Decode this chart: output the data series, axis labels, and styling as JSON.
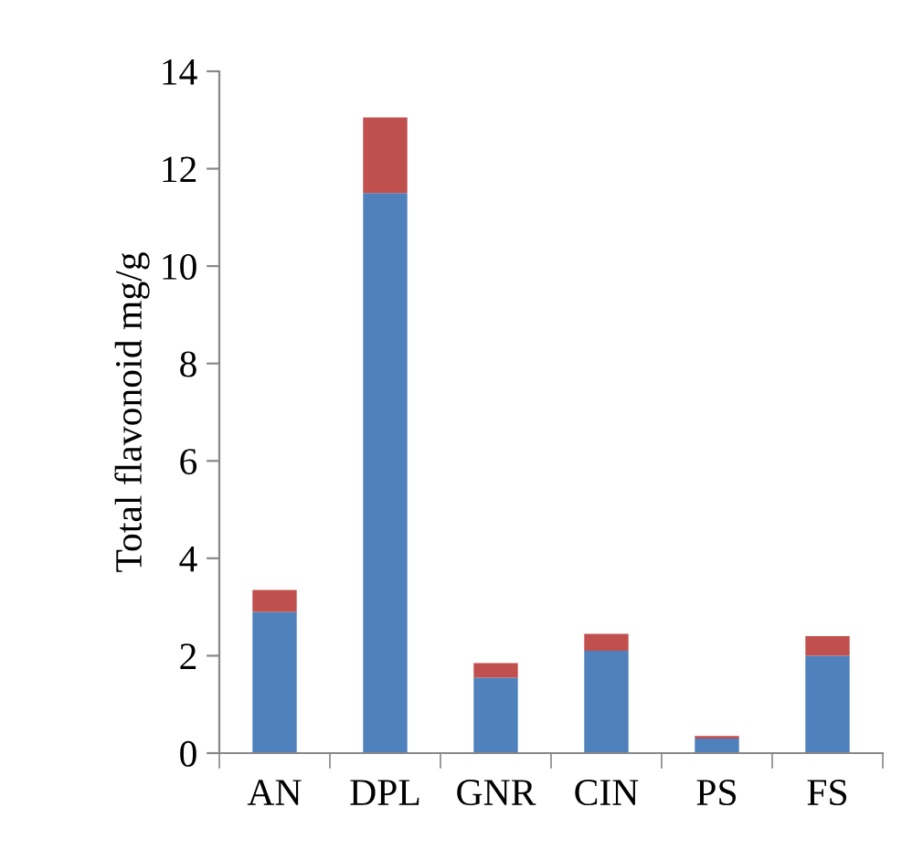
{
  "chart_data": {
    "type": "bar",
    "stacked": true,
    "ylabel": "Total flavonoid mg/g",
    "categories": [
      "AN",
      "DPL",
      "GNR",
      "CIN",
      "PS",
      "FS"
    ],
    "series": [
      {
        "color": "#4f81bd",
        "values": [
          2.9,
          11.5,
          1.55,
          2.1,
          0.3,
          2.0
        ]
      },
      {
        "color": "#c0504d",
        "values": [
          0.45,
          1.55,
          0.3,
          0.35,
          0.05,
          0.4
        ]
      }
    ],
    "ylim": [
      0,
      14
    ],
    "yticks": [
      0,
      2,
      4,
      6,
      8,
      10,
      12,
      14
    ],
    "grid": false,
    "legend": false
  }
}
